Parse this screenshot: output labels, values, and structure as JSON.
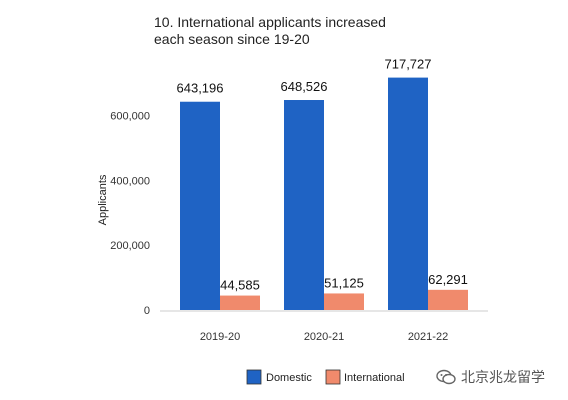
{
  "title_lines": [
    "10. International applicants increased",
    "each season since 19-20"
  ],
  "watermark": {
    "text": "北京兆龙留学",
    "icon": "wechat-icon"
  },
  "colors": {
    "Domestic": "#1f63c4",
    "International": "#f08a6c",
    "axis_text": "#333333",
    "baseline": "#cccccc"
  },
  "chart_data": {
    "type": "bar",
    "title": "10. International applicants increased each season since 19-20",
    "xlabel": "",
    "ylabel": "Applicants",
    "categories": [
      "2019-20",
      "2020-21",
      "2021-22"
    ],
    "series": [
      {
        "name": "Domestic",
        "values": [
          643196,
          648526,
          717727
        ],
        "labels": [
          "643,196",
          "648,526",
          "717,727"
        ]
      },
      {
        "name": "International",
        "values": [
          44585,
          51125,
          62291
        ],
        "labels": [
          "44,585",
          "51,125",
          "62,291"
        ]
      }
    ],
    "yticks": [
      0,
      200000,
      400000,
      600000
    ],
    "ytick_labels": [
      "0",
      "200,000",
      "400,000",
      "600,000"
    ],
    "ylim": [
      0,
      800000
    ],
    "grid": false,
    "legend": "bottom"
  }
}
